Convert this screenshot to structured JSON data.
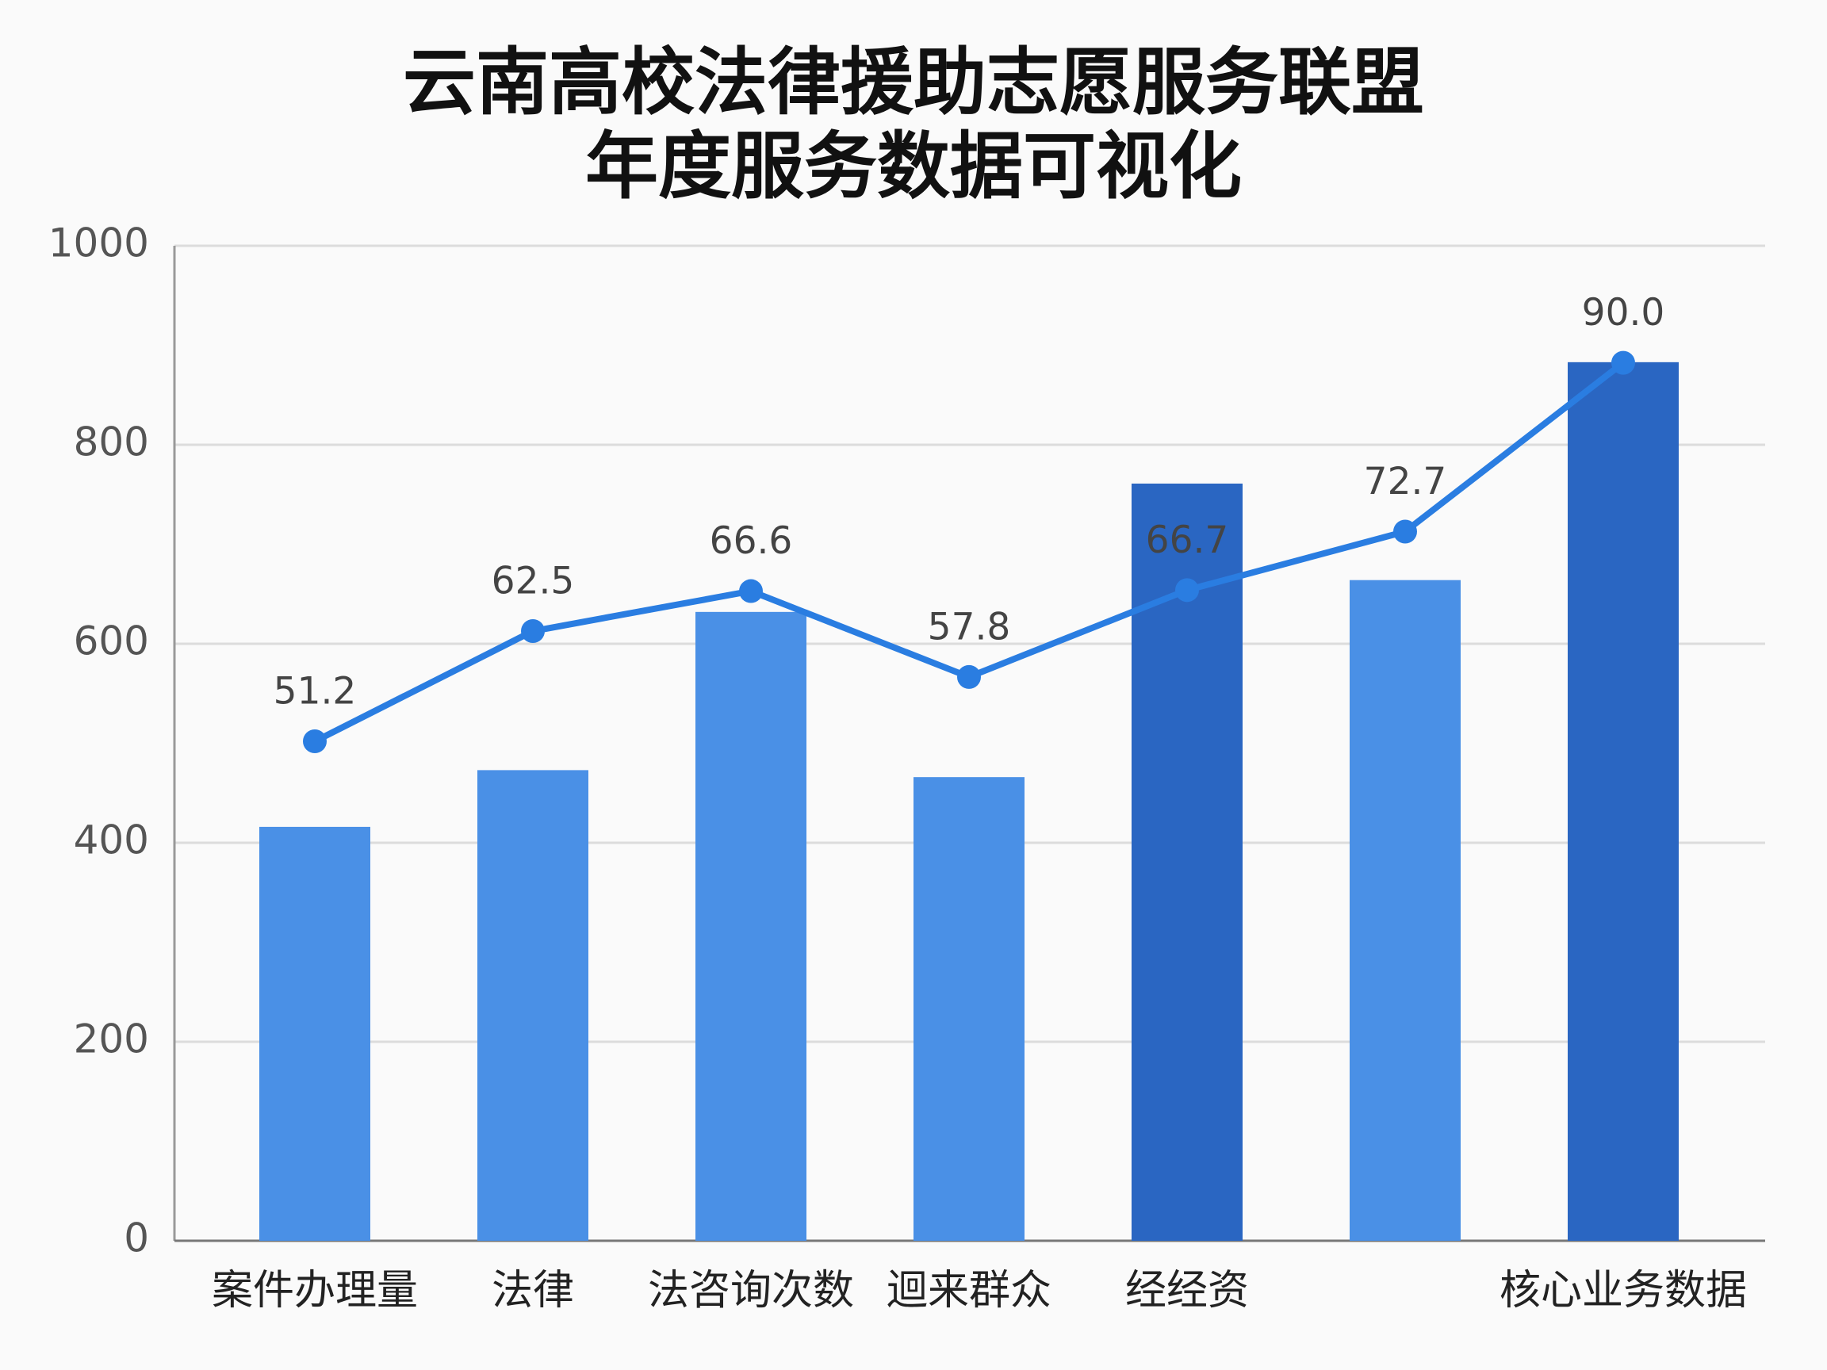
{
  "chart_data": {
    "type": "bar",
    "title": [
      "云南高校法律援助志愿服务联盟",
      "年度服务数据可视化"
    ],
    "categories": [
      "案件办理量",
      "法律",
      "法咨询次数",
      "迴来群众",
      "经经资",
      null,
      "核心业务数据"
    ],
    "ylim": [
      0,
      1000
    ],
    "yticks": [
      0,
      200,
      400,
      600,
      800,
      1000
    ],
    "y2lim": [
      0,
      102
    ],
    "grid": true,
    "series": [
      {
        "type": "bar",
        "values": [
          416,
          473,
          632,
          466,
          761,
          664,
          883
        ],
        "colors": [
          "#4a90e6",
          "#4a90e6",
          "#4a90e6",
          "#4a90e6",
          "#2a66c2",
          "#4a90e6",
          "#2a66c2"
        ]
      },
      {
        "type": "line",
        "axis": "y2",
        "color": "#2a7de1",
        "values": [
          51.2,
          62.5,
          66.6,
          57.8,
          66.7,
          72.7,
          90.0
        ],
        "value_labels": [
          "51.2",
          "62.5",
          "66.6",
          "57.8",
          "66.7",
          "72.7",
          "90.0"
        ]
      }
    ]
  }
}
